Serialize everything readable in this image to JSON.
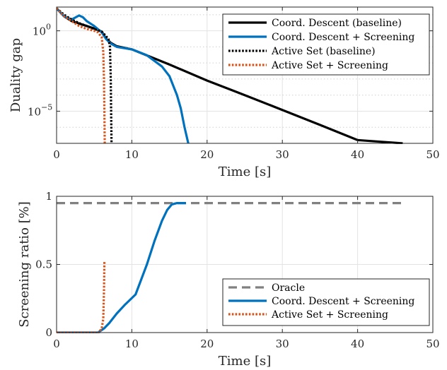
{
  "chart_data": [
    {
      "type": "line",
      "xlabel": "Time [s]",
      "ylabel": "Duality gap",
      "y_scale": "log",
      "xlim": [
        0,
        50
      ],
      "ylim": [
        1e-07,
        30
      ],
      "xticks": [
        0,
        10,
        20,
        30,
        40,
        50
      ],
      "xtick_labels": [
        "0",
        "10",
        "20",
        "30",
        "40",
        "50"
      ],
      "yticks": [
        1,
        1e-05
      ],
      "ytick_labels_major": [
        "10",
        "10"
      ],
      "ytick_labels_exp": [
        "0",
        "−5"
      ],
      "grid": true,
      "legend_position": "top-right",
      "series": [
        {
          "name": "Coord. Descent (baseline)",
          "color": "#000000",
          "style": "solid",
          "x": [
            0,
            1,
            2,
            3,
            4,
            5,
            6,
            6.6,
            7.2,
            8,
            10,
            15,
            20,
            25,
            30,
            35,
            40,
            46
          ],
          "y": [
            25,
            8,
            4,
            2.8,
            2,
            1.4,
            0.9,
            0.32,
            0.18,
            0.11,
            0.07,
            0.008,
            0.0008,
            0.0001,
            1.2e-05,
            1.4e-06,
            1.6e-07,
            1e-07
          ]
        },
        {
          "name": "Coord. Descent + Screening",
          "color": "#0072BD",
          "style": "solid",
          "x": [
            0,
            1,
            2,
            3,
            3.5,
            4,
            5,
            6,
            6.6,
            7.2,
            8,
            10,
            12,
            14,
            15,
            16,
            16.5,
            17,
            17.5
          ],
          "y": [
            25,
            8,
            5,
            9,
            7,
            4,
            2,
            0.8,
            0.3,
            0.16,
            0.1,
            0.07,
            0.03,
            0.006,
            0.0015,
            0.0001,
            1.5e-05,
            1e-06,
            1e-07
          ]
        },
        {
          "name": "Active Set (baseline)",
          "color": "#000000",
          "style": "dotted",
          "x": [
            0,
            1,
            2,
            3,
            4,
            5,
            6,
            6.5,
            6.9,
            7.1,
            7.2,
            7.25,
            7.3
          ],
          "y": [
            25,
            10,
            5,
            3,
            2,
            1.3,
            0.9,
            0.5,
            0.3,
            0.1,
            0.001,
            1e-05,
            1e-07
          ]
        },
        {
          "name": "Active Set + Screening",
          "color": "#D95319",
          "style": "dotted",
          "x": [
            0,
            1,
            2,
            3,
            4,
            5,
            5.5,
            6,
            6.2,
            6.3,
            6.35,
            6.4
          ],
          "y": [
            25,
            8,
            4,
            2,
            1.3,
            1,
            0.8,
            0.4,
            0.05,
            0.001,
            1e-05,
            1e-07
          ]
        }
      ]
    },
    {
      "type": "line",
      "xlabel": "Time [s]",
      "ylabel": "Screening ratio [%]",
      "xlim": [
        0,
        50
      ],
      "ylim": [
        0,
        1
      ],
      "xticks": [
        0,
        10,
        20,
        30,
        40,
        50
      ],
      "xtick_labels": [
        "0",
        "10",
        "20",
        "30",
        "40",
        "50"
      ],
      "yticks": [
        0,
        0.5,
        1
      ],
      "ytick_labels": [
        "0",
        "0.5",
        "1"
      ],
      "grid": true,
      "legend_position": "bottom-right",
      "series": [
        {
          "name": "Oracle",
          "color": "#808080",
          "style": "dashed",
          "x": [
            0,
            46
          ],
          "y": [
            0.95,
            0.95
          ]
        },
        {
          "name": "Coord. Descent + Screening",
          "color": "#0072BD",
          "style": "solid",
          "x": [
            0,
            5.5,
            6.3,
            7,
            8,
            9,
            10.5,
            12,
            13,
            14,
            14.7,
            15.3,
            16,
            17.2
          ],
          "y": [
            0,
            0,
            0.03,
            0.07,
            0.14,
            0.2,
            0.28,
            0.5,
            0.67,
            0.82,
            0.9,
            0.94,
            0.95,
            0.95
          ]
        },
        {
          "name": "Active Set + Screening",
          "color": "#D95319",
          "style": "dotted",
          "x": [
            0,
            5.6,
            6,
            6.2,
            6.3,
            6.35
          ],
          "y": [
            0,
            0,
            0.03,
            0.1,
            0.3,
            0.52
          ]
        }
      ]
    }
  ]
}
